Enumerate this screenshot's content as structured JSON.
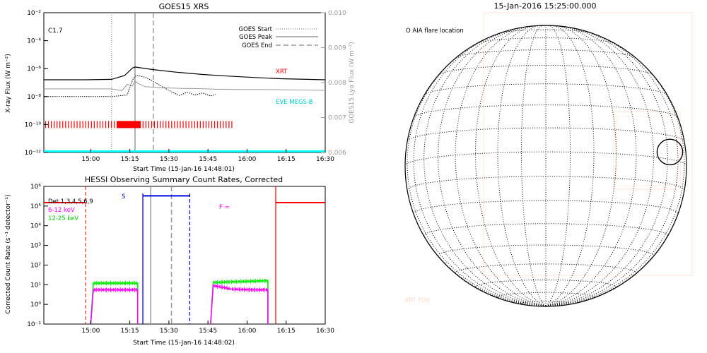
{
  "chart_data": [
    {
      "type": "line",
      "title": "GOES15 XRS",
      "xlabel": "Start Time (15-Jan-16 14:48:01)",
      "ylabel": "X-ray Flux (W m⁻²)",
      "ylabel_right": "GOES15 Lyα Flux (W m⁻²)",
      "x_ticks": [
        "15:00",
        "15:15",
        "15:30",
        "15:45",
        "16:00",
        "16:15",
        "16:30"
      ],
      "x_tick_minutes": [
        12,
        27,
        42,
        57,
        72,
        87,
        102
      ],
      "x_range_minutes": [
        -6,
        102
      ],
      "y_scale": "log",
      "ylim": [
        1e-12,
        0.01
      ],
      "y_ticks": [
        "10⁻¹²",
        "10⁻¹⁰",
        "10⁻⁸",
        "10⁻⁶",
        "10⁻⁴",
        "10⁻²"
      ],
      "y_tick_exp": [
        -12,
        -10,
        -8,
        -6,
        -4,
        -2
      ],
      "y2lim": [
        0.006,
        0.01
      ],
      "y2_ticks": [
        "0.006",
        "0.007",
        "0.008",
        "0.009",
        "0.010"
      ],
      "y2_tick_values": [
        0.006,
        0.007,
        0.008,
        0.009,
        0.01
      ],
      "annotation": "C1.7",
      "legend": [
        "GOES Start",
        "GOES Peak",
        "GOES End"
      ],
      "labels": {
        "xrt": "XRT",
        "eve": "EVE MEGS-B"
      },
      "events": {
        "goes_start": 20,
        "goes_peak": 29,
        "goes_end": 36
      },
      "series": [
        {
          "name": "XRT",
          "x": [
            -6,
            10,
            20,
            25,
            28,
            29,
            31,
            36,
            45,
            55,
            65,
            75,
            85,
            95,
            102
          ],
          "y": [
            1.6e-07,
            1.6e-07,
            1.7e-07,
            3.2e-07,
            1.1e-06,
            1.3e-06,
            1.15e-06,
            8.5e-07,
            5.5e-07,
            3.8e-07,
            2.9e-07,
            2.3e-07,
            1.9e-07,
            1.7e-07,
            1.6e-07
          ]
        },
        {
          "name": "GOES low channel",
          "x": [
            -6,
            20,
            26,
            28,
            29,
            30,
            33,
            36,
            40,
            43,
            46,
            49,
            52,
            55,
            58,
            60
          ],
          "y": [
            1e-08,
            1e-08,
            1.3e-08,
            1.5e-07,
            2.8e-07,
            3.2e-07,
            2.4e-07,
            1.2e-07,
            4.5e-08,
            2.2e-08,
            1.2e-08,
            2e-08,
            1.3e-08,
            1.8e-08,
            1.1e-08,
            1.4e-08
          ]
        },
        {
          "name": "Lyα",
          "x": [
            -6,
            20,
            24,
            26,
            28,
            29,
            30,
            33,
            36,
            40,
            44,
            48,
            52,
            60,
            70,
            80,
            90,
            102
          ],
          "y": [
            0.00782,
            0.00782,
            0.00777,
            0.00795,
            0.0079,
            0.00805,
            0.00798,
            0.00788,
            0.00787,
            0.00785,
            0.00784,
            0.00783,
            0.00783,
            0.00781,
            0.0078,
            0.0078,
            0.00779,
            0.00778
          ]
        },
        {
          "name": "EVE MEGS-B",
          "x": [
            -6,
            102
          ],
          "y": [
            1.2e-12,
            1.2e-12
          ]
        }
      ]
    },
    {
      "type": "line",
      "title": "HESSI Observing Summary Count Rates, Corrected",
      "xlabel": "Start Time (15-Jan-16 14:48:02)",
      "ylabel": "Corrected Count Rate (s⁻¹ detector⁻¹)",
      "x_ticks": [
        "15:00",
        "15:15",
        "15:30",
        "15:45",
        "16:00",
        "16:15",
        "16:30"
      ],
      "x_tick_minutes": [
        12,
        27,
        42,
        57,
        72,
        87,
        102
      ],
      "x_range_minutes": [
        -6,
        102
      ],
      "y_scale": "log",
      "ylim": [
        0.1,
        1000000
      ],
      "y_ticks": [
        "10⁻¹",
        "10⁰",
        "10¹",
        "10²",
        "10³",
        "10⁴",
        "10⁵",
        "10⁶"
      ],
      "y_tick_exp": [
        -1,
        0,
        1,
        2,
        3,
        4,
        5,
        6
      ],
      "legend": [
        "Det 1,3,4,5,6,9",
        "6-12 keV",
        "12-25 keV"
      ],
      "flags": {
        "s": "S",
        "f": "F ="
      },
      "events": {
        "line_a": 10,
        "line_s_start": 32,
        "line_gray": 35,
        "line_gray_dash": 43,
        "line_s_end": 50,
        "line_f": 83
      },
      "state_bars": {
        "red_left": [
          -6,
          10
        ],
        "blue_s": [
          32,
          50
        ],
        "red_right": [
          83,
          102
        ]
      },
      "series": [
        {
          "name": "12-25 keV",
          "segments": [
            [
              [
                12,
                0.1
              ],
              [
                13,
                12
              ],
              [
                30,
                12
              ],
              [
                30,
                0.1
              ]
            ],
            [
              [
                58,
                0.1
              ],
              [
                59,
                13
              ],
              [
                80,
                16
              ],
              [
                80,
                0.1
              ]
            ]
          ]
        },
        {
          "name": "6-12 keV",
          "segments": [
            [
              [
                12,
                0.1
              ],
              [
                13,
                5.5
              ],
              [
                30,
                5.5
              ],
              [
                30,
                0.1
              ]
            ],
            [
              [
                58,
                0.1
              ],
              [
                59,
                9
              ],
              [
                66,
                6
              ],
              [
                74,
                5.5
              ],
              [
                80,
                5.5
              ],
              [
                80,
                0.1
              ]
            ]
          ]
        }
      ]
    }
  ],
  "solar_map": {
    "title": "15-Jan-2016 15:25:00.000",
    "legend_label": "O AIA flare location",
    "fov_label": "XRT FOV",
    "flare_location": {
      "lon_deg": 62,
      "lat_deg": 3,
      "radius_fraction": 0.07
    }
  },
  "colors": {
    "red": "#ff0000",
    "blue": "#0000dd",
    "green": "#00ee00",
    "magenta": "#ff00ff",
    "cyan": "#00ffff",
    "gray": "#999999"
  }
}
